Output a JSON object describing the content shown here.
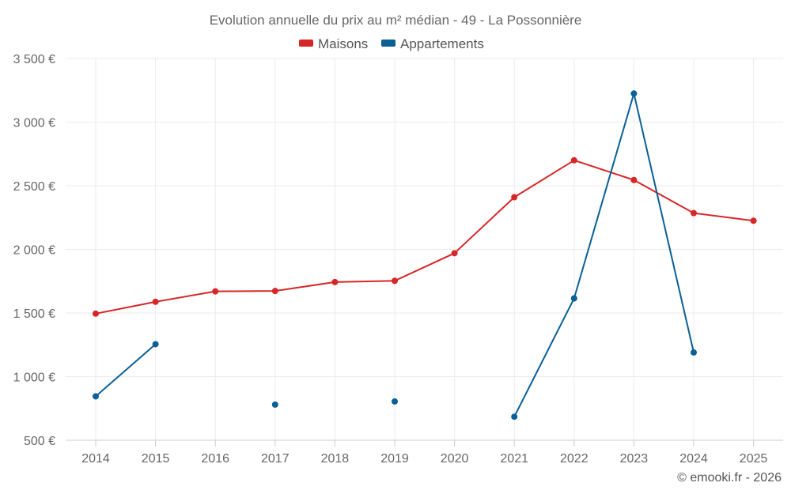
{
  "chart_data": {
    "type": "line",
    "title": "Evolution annuelle du prix au m² médian - 49 - La Possonnière",
    "xlabel": "",
    "ylabel": "",
    "categories": [
      "2014",
      "2015",
      "2016",
      "2017",
      "2018",
      "2019",
      "2020",
      "2021",
      "2022",
      "2023",
      "2024",
      "2025"
    ],
    "ylim": [
      500,
      3500
    ],
    "yticks": [
      500,
      1000,
      1500,
      2000,
      2500,
      3000,
      3500
    ],
    "ytick_labels": [
      "500 €",
      "1 000 €",
      "1 500 €",
      "2 000 €",
      "2 500 €",
      "3 000 €",
      "3 500 €"
    ],
    "grid": true,
    "legend_position": "top-center",
    "series": [
      {
        "name": "Maisons",
        "color": "#d62728",
        "values": [
          1495,
          1588,
          1670,
          1673,
          1743,
          1753,
          1970,
          2410,
          2700,
          2545,
          2285,
          2225
        ]
      },
      {
        "name": "Appartements",
        "color": "#0a5f96",
        "values": [
          845,
          1255,
          null,
          780,
          null,
          805,
          null,
          685,
          1615,
          3225,
          1190,
          null
        ]
      }
    ],
    "credit": "© emooki.fr - 2026"
  }
}
